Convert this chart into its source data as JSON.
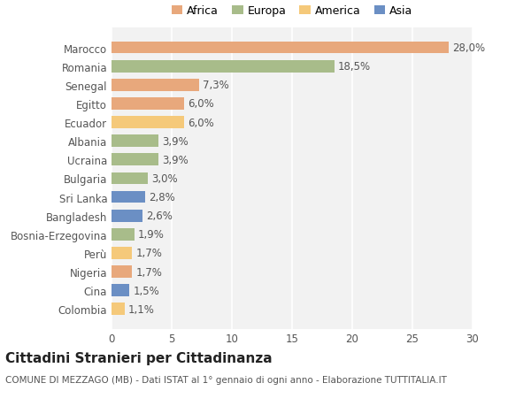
{
  "countries": [
    "Colombia",
    "Cina",
    "Nigeria",
    "Perù",
    "Bosnia-Erzegovina",
    "Bangladesh",
    "Sri Lanka",
    "Bulgaria",
    "Ucraina",
    "Albania",
    "Ecuador",
    "Egitto",
    "Senegal",
    "Romania",
    "Marocco"
  ],
  "values": [
    1.1,
    1.5,
    1.7,
    1.7,
    1.9,
    2.6,
    2.8,
    3.0,
    3.9,
    3.9,
    6.0,
    6.0,
    7.3,
    18.5,
    28.0
  ],
  "colors": [
    "#F5C97A",
    "#6B8FC4",
    "#E8A87C",
    "#F5C97A",
    "#A8BC8A",
    "#6B8FC4",
    "#6B8FC4",
    "#A8BC8A",
    "#A8BC8A",
    "#A8BC8A",
    "#F5C97A",
    "#E8A87C",
    "#E8A87C",
    "#A8BC8A",
    "#E8A87C"
  ],
  "labels": [
    "1,1%",
    "1,5%",
    "1,7%",
    "1,7%",
    "1,9%",
    "2,6%",
    "2,8%",
    "3,0%",
    "3,9%",
    "3,9%",
    "6,0%",
    "6,0%",
    "7,3%",
    "18,5%",
    "28,0%"
  ],
  "legend": [
    {
      "label": "Africa",
      "color": "#E8A87C"
    },
    {
      "label": "Europa",
      "color": "#A8BC8A"
    },
    {
      "label": "America",
      "color": "#F5C97A"
    },
    {
      "label": "Asia",
      "color": "#6B8FC4"
    }
  ],
  "title": "Cittadini Stranieri per Cittadinanza",
  "subtitle": "COMUNE DI MEZZAGO (MB) - Dati ISTAT al 1° gennaio di ogni anno - Elaborazione TUTTITALIA.IT",
  "xlim": [
    0,
    30
  ],
  "xticks": [
    0,
    5,
    10,
    15,
    20,
    25,
    30
  ],
  "background_color": "#FFFFFF",
  "plot_background": "#F2F2F2",
  "grid_color": "#FFFFFF",
  "bar_height": 0.65,
  "title_fontsize": 11,
  "subtitle_fontsize": 7.5,
  "tick_fontsize": 8.5,
  "label_fontsize": 8.5
}
